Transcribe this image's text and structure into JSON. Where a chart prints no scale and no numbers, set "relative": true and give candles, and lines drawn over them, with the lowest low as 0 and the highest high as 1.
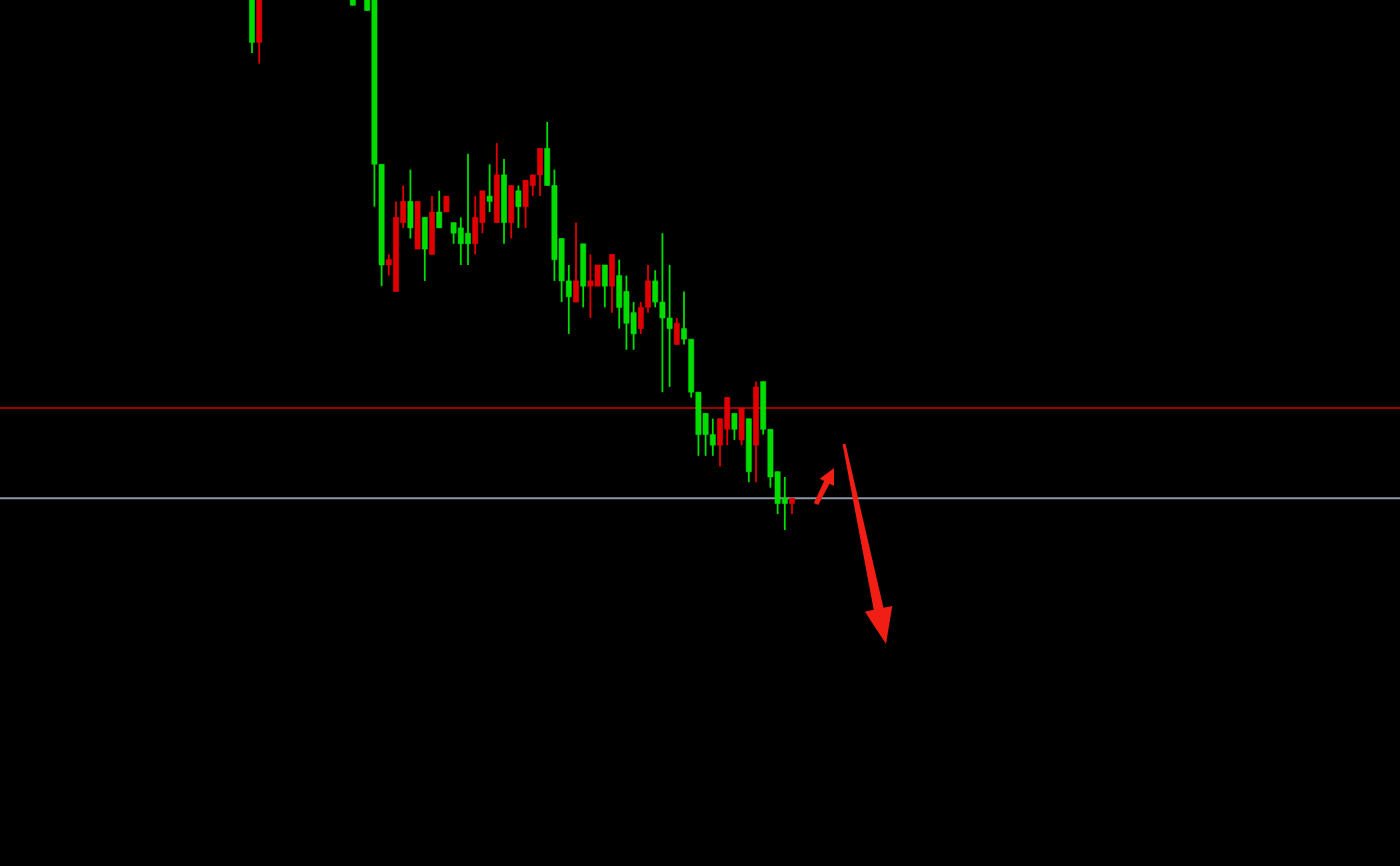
{
  "chart_data": {
    "type": "candlestick",
    "relative": true,
    "categories": [
      null,
      null,
      null,
      null,
      null,
      null,
      null,
      null,
      null,
      null,
      null,
      null,
      null,
      null,
      null,
      null,
      null,
      null,
      null,
      null,
      null,
      null,
      null,
      null,
      null,
      null,
      null,
      null,
      null,
      null,
      null,
      null,
      null,
      null,
      null,
      null,
      null,
      null,
      null,
      null,
      null,
      null,
      null,
      null,
      null,
      null,
      null,
      null,
      null,
      null,
      null,
      null,
      null,
      null,
      null,
      null,
      null,
      null,
      null,
      null,
      null,
      null,
      null,
      null,
      null,
      null,
      null,
      null,
      null,
      null,
      null,
      null,
      null,
      null,
      null,
      null
    ],
    "ohlc": [
      [
        1,
        1,
        0.9,
        0.92
      ],
      [
        0.92,
        1,
        0.88,
        1
      ],
      null,
      null,
      null,
      null,
      null,
      null,
      null,
      null,
      null,
      null,
      null,
      null,
      [
        1,
        1,
        0.99,
        0.99
      ],
      null,
      [
        1,
        1,
        0.98,
        0.98
      ],
      [
        1,
        1,
        0.61,
        0.69
      ],
      [
        0.69,
        0.69,
        0.46,
        0.5
      ],
      [
        0.5,
        0.52,
        0.48,
        0.51
      ],
      [
        0.45,
        0.62,
        0.45,
        0.59
      ],
      [
        0.58,
        0.65,
        0.57,
        0.62
      ],
      [
        0.62,
        0.68,
        0.55,
        0.57
      ],
      [
        0.53,
        0.62,
        0.53,
        0.62
      ],
      [
        0.59,
        0.59,
        0.47,
        0.53
      ],
      [
        0.52,
        0.63,
        0.52,
        0.6
      ],
      [
        0.6,
        0.64,
        0.57,
        0.57
      ],
      [
        0.6,
        0.63,
        0.6,
        0.63
      ],
      [
        0.58,
        0.58,
        0.54,
        0.56
      ],
      [
        0.57,
        0.59,
        0.5,
        0.54
      ],
      [
        0.56,
        0.71,
        0.5,
        0.54
      ],
      [
        0.54,
        0.63,
        0.52,
        0.59
      ],
      [
        0.58,
        0.64,
        0.56,
        0.64
      ],
      [
        0.63,
        0.69,
        0.6,
        0.62
      ],
      [
        0.58,
        0.73,
        0.58,
        0.67
      ],
      [
        0.67,
        0.7,
        0.54,
        0.58
      ],
      [
        0.58,
        0.65,
        0.55,
        0.65
      ],
      [
        0.64,
        0.65,
        0.57,
        0.61
      ],
      [
        0.61,
        0.66,
        0.57,
        0.66
      ],
      [
        0.65,
        0.67,
        0.63,
        0.67
      ],
      [
        0.67,
        0.72,
        0.63,
        0.72
      ],
      [
        0.72,
        0.77,
        0.65,
        0.65
      ],
      [
        0.65,
        0.68,
        0.47,
        0.51
      ],
      [
        0.55,
        0.55,
        0.43,
        0.47
      ],
      [
        0.47,
        0.5,
        0.37,
        0.44
      ],
      [
        0.43,
        0.58,
        0.43,
        0.47
      ],
      [
        0.54,
        0.54,
        0.42,
        0.46
      ],
      [
        0.46,
        0.52,
        0.4,
        0.47
      ],
      [
        0.46,
        0.5,
        0.46,
        0.5
      ],
      [
        0.5,
        0.5,
        0.42,
        0.46
      ],
      [
        0.46,
        0.52,
        0.41,
        0.52
      ],
      [
        0.48,
        0.51,
        0.38,
        0.42
      ],
      [
        0.45,
        0.48,
        0.34,
        0.39
      ],
      [
        0.41,
        0.43,
        0.34,
        0.37
      ],
      [
        0.38,
        0.43,
        0.37,
        0.42
      ],
      [
        0.42,
        0.5,
        0.41,
        0.47
      ],
      [
        0.47,
        0.49,
        0.42,
        0.43
      ],
      [
        0.43,
        0.56,
        0.26,
        0.4
      ],
      [
        0.4,
        0.5,
        0.27,
        0.38
      ],
      [
        0.35,
        0.4,
        0.35,
        0.39
      ],
      [
        0.38,
        0.45,
        0.35,
        0.36
      ],
      [
        0.36,
        0.36,
        0.25,
        0.26
      ],
      [
        0.26,
        0.26,
        0.14,
        0.18
      ],
      [
        0.22,
        0.22,
        0.14,
        0.18
      ],
      [
        0.18,
        0.21,
        0.14,
        0.16
      ],
      [
        0.16,
        0.21,
        0.12,
        0.21
      ],
      [
        0.19,
        0.25,
        0.16,
        0.25
      ],
      [
        0.22,
        0.22,
        0.17,
        0.19
      ],
      [
        0.17,
        0.23,
        0.16,
        0.23
      ],
      [
        0.21,
        0.21,
        0.09,
        0.11
      ],
      [
        0.16,
        0.28,
        0.09,
        0.27
      ],
      [
        0.28,
        0.28,
        0.18,
        0.19
      ],
      [
        0.19,
        0.19,
        0.08,
        0.1
      ],
      [
        0.11,
        0.11,
        0.03,
        0.05
      ],
      [
        0.06,
        0.1,
        0,
        0.05
      ],
      [
        0.05,
        0.06,
        0.03,
        0.06
      ]
    ],
    "colors": [
      "#00dd00",
      "#e00000",
      null,
      null,
      null,
      null,
      null,
      null,
      null,
      null,
      null,
      null,
      null,
      null,
      "#00dd00",
      null,
      "#00dd00",
      "#00dd00",
      "#00dd00",
      "#e00000",
      "#e00000",
      "#e00000",
      "#00dd00",
      "#e00000",
      "#00dd00",
      "#e00000",
      "#00dd00",
      "#e00000",
      "#00dd00",
      "#00dd00",
      "#00dd00",
      "#e00000",
      "#e00000",
      "#00dd00",
      "#e00000",
      "#00dd00",
      "#e00000",
      "#00dd00",
      "#e00000",
      "#e00000",
      "#e00000",
      "#00dd00",
      "#00dd00",
      "#00dd00",
      "#00dd00",
      "#e00000",
      "#00dd00",
      "#e00000",
      "#e00000",
      "#00dd00",
      "#e00000",
      "#00dd00",
      "#00dd00",
      "#00dd00",
      "#e00000",
      "#e00000",
      "#00dd00",
      "#00dd00",
      "#00dd00",
      "#e00000",
      "#00dd00",
      "#00dd00",
      "#00dd00",
      "#00dd00",
      "#00dd00",
      "#e00000",
      "#e00000",
      "#00dd00",
      "#e00000",
      "#00dd00",
      "#e00000",
      "#00dd00",
      "#00dd00",
      "#00dd00",
      "#00dd00",
      "#e00000"
    ],
    "ref_lines": [
      {
        "axis": "y",
        "value": 0.23,
        "color": "#a00000"
      },
      {
        "axis": "y",
        "value": 0.06,
        "color": "#8c96a6"
      }
    ]
  }
}
